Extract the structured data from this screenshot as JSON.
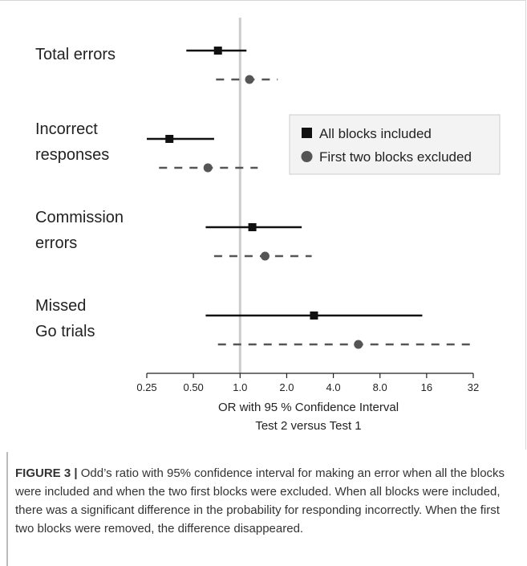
{
  "chart_data": {
    "type": "forest",
    "xaxis": {
      "scale": "log2",
      "ticks": [
        0.25,
        0.5,
        1,
        2,
        4,
        8,
        16,
        32
      ],
      "tick_labels": [
        "0.25",
        "0.50",
        "1.0",
        "2.0",
        "4.0",
        "8.0",
        "16",
        "32"
      ],
      "xlabel_line1": "OR with 95 % Confidence Interval",
      "xlabel_line2": "Test 2 versus Test 1",
      "reference": 1
    },
    "categories": [
      {
        "label_lines": [
          "Total errors"
        ]
      },
      {
        "label_lines": [
          "Incorrect",
          "responses"
        ]
      },
      {
        "label_lines": [
          "Commission",
          "errors"
        ]
      },
      {
        "label_lines": [
          "Missed",
          "Go trials"
        ]
      }
    ],
    "series": [
      {
        "name": "All blocks included",
        "marker": "square",
        "line": "solid",
        "color": "#111111",
        "values": [
          {
            "or": 0.72,
            "lo": 0.45,
            "hi": 1.1
          },
          {
            "or": 0.35,
            "lo": 0.21,
            "hi": 0.68
          },
          {
            "or": 1.2,
            "lo": 0.6,
            "hi": 2.5
          },
          {
            "or": 3.0,
            "lo": 0.6,
            "hi": 15.0
          }
        ]
      },
      {
        "name": "First two blocks excluded",
        "marker": "circle",
        "line": "dashed",
        "color": "#555555",
        "values": [
          {
            "or": 1.15,
            "lo": 0.7,
            "hi": 1.75
          },
          {
            "or": 0.62,
            "lo": 0.3,
            "hi": 1.3
          },
          {
            "or": 1.45,
            "lo": 0.68,
            "hi": 2.9
          },
          {
            "or": 5.8,
            "lo": 0.72,
            "hi": 33
          }
        ]
      }
    ],
    "legend_position": "right"
  },
  "caption": {
    "label": "FIGURE 3 |",
    "text": " Odd’s ratio with 95% confidence interval for making an error when all the blocks were included and when the two first blocks were excluded. When all blocks were included, there was a significant difference in the probability for responding incorrectly. When the first two blocks were removed, the difference disappeared."
  }
}
